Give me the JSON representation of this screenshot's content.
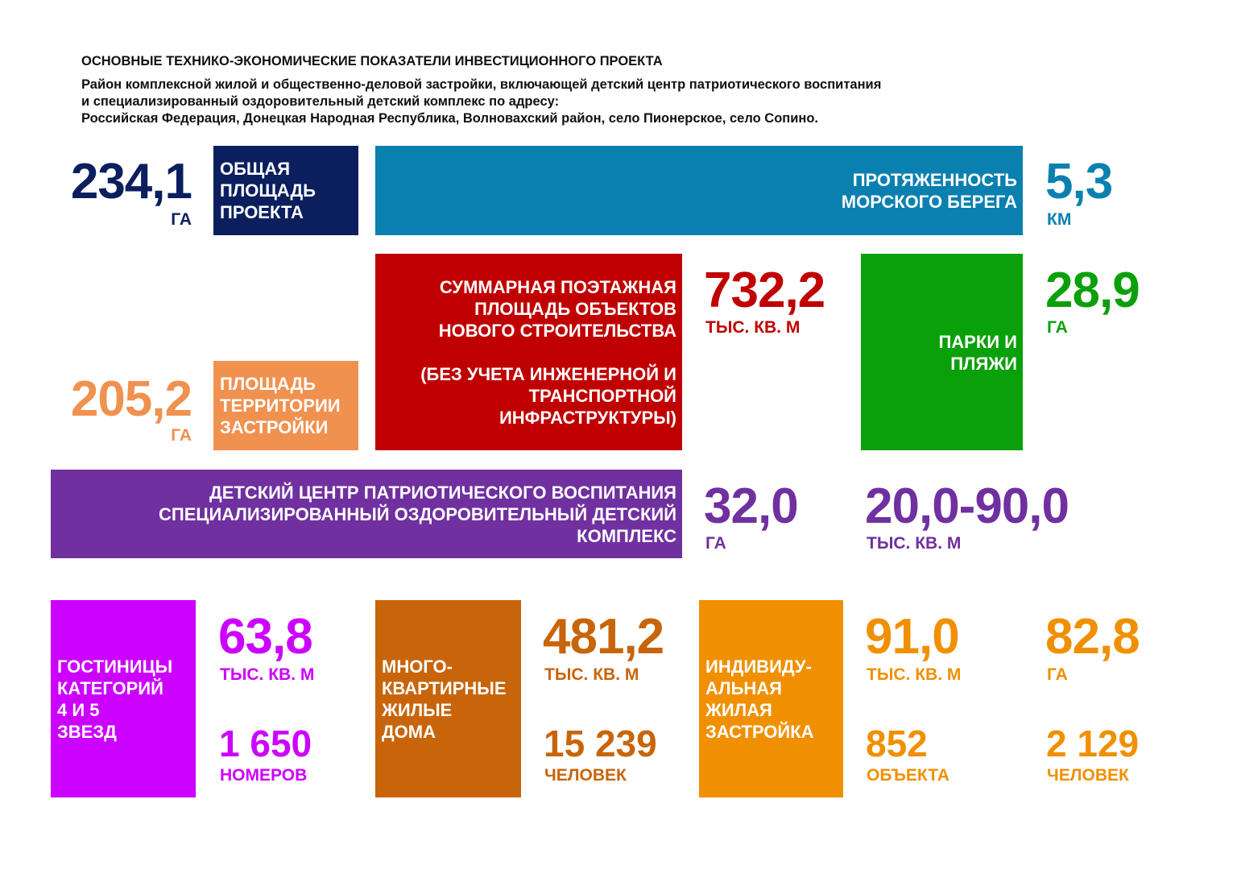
{
  "header": {
    "title": "ОСНОВНЫЕ ТЕХНИКО-ЭКОНОМИЧЕСКИЕ ПОКАЗАТЕЛИ ИНВЕСТИЦИОННОГО ПРОЕКТА",
    "subtitle": "Район комплексной жилой и общественно-деловой застройки, включающей детский центр патриотического воспитания\nи специализированный оздоровительный детский комплекс по адресу:\nРоссийская Федерация, Донецкая Народная Республика, Волновахский район, село Пионерское, село Сопино."
  },
  "colors": {
    "navy": "#0b1f5e",
    "teal": "#0a80b0",
    "light_orange": "#f0914f",
    "red": "#c00000",
    "green": "#0aa00a",
    "purple": "#7030a0",
    "magenta": "#cc00ff",
    "brown": "#c8650a",
    "orange": "#f09000"
  },
  "total_area": {
    "label": "ОБЩАЯ\nПЛОЩАДЬ\nПРОЕКТА",
    "value": "234,1",
    "unit": "ГА"
  },
  "coastline": {
    "label": "ПРОТЯЖЕННОСТЬ\nМОРСКОГО БЕРЕГА",
    "value": "5,3",
    "unit": "КМ"
  },
  "floor_area": {
    "label": "СУММАРНАЯ ПОЭТАЖНАЯ\nПЛОЩАДЬ ОБЪЕКТОВ\nНОВОГО СТРОИТЕЛЬСТВА\n\n(БЕЗ УЧЕТА ИНЖЕНЕРНОЙ И\nТРАНСПОРТНОЙ\nИНФРАСТРУКТУРЫ)",
    "value": "732,2",
    "unit": "ТЫС. КВ. М"
  },
  "parks": {
    "label": "ПАРКИ И\nПЛЯЖИ",
    "value": "28,9",
    "unit": "ГА"
  },
  "built_area": {
    "label": "ПЛОЩАДЬ\nТЕРРИТОРИИ\nЗАСТРОЙКИ",
    "value": "205,2",
    "unit": "ГА"
  },
  "children_center": {
    "label": "ДЕТСКИЙ ЦЕНТР ПАТРИОТИЧЕСКОГО ВОСПИТАНИЯ\nСПЕЦИАЛИЗИРОВАННЫЙ ОЗДОРОВИТЕЛЬНЫЙ ДЕТСКИЙ\nКОМПЛЕКС",
    "value1": "32,0",
    "unit1": "ГА",
    "value2": "20,0-90,0",
    "unit2": "ТЫС. КВ. М"
  },
  "hotels": {
    "label": "ГОСТИНИЦЫ\nКАТЕГОРИЙ\n4 И 5\nЗВЕЗД",
    "value1": "63,8",
    "unit1": "ТЫС. КВ. М",
    "value2": "1 650",
    "unit2": "НОМЕРОВ"
  },
  "apartments": {
    "label": "МНОГО-\nКВАРТИРНЫЕ\nЖИЛЫЕ\nДОМА",
    "value1": "481,2",
    "unit1": "ТЫС. КВ. М",
    "value2": "15 239",
    "unit2": "ЧЕЛОВЕК"
  },
  "individual": {
    "label": "ИНДИВИДУ-\nАЛЬНАЯ\nЖИЛАЯ\nЗАСТРОЙКА",
    "value1": "91,0",
    "unit1": "ТЫС. КВ. М",
    "value2": "852",
    "unit2": "ОБЪЕКТА",
    "value3": "82,8",
    "unit3": "ГА",
    "value4": "2 129",
    "unit4": "ЧЕЛОВЕК"
  }
}
